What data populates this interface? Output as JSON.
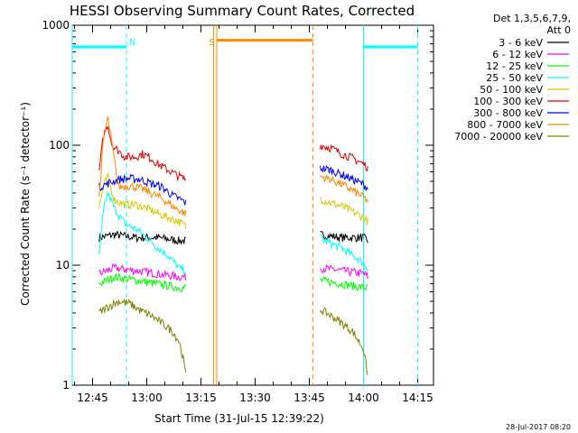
{
  "chart_data": {
    "type": "line",
    "title": "HESSI Observing Summary Count Rates, Corrected",
    "xlabel": "Start Time (31-Jul-15 12:39:22)",
    "ylabel": "Corrected Count Rate (s⁻¹ detector⁻¹)",
    "y_scale": "log",
    "ylim": [
      1,
      1000
    ],
    "y_ticks": [
      {
        "v": 1,
        "label": "1"
      },
      {
        "v": 10,
        "label": "10"
      },
      {
        "v": 100,
        "label": "100"
      },
      {
        "v": 1000,
        "label": "1000"
      }
    ],
    "xlim": [
      "12:39:22",
      "14:19:22"
    ],
    "x_ticks": [
      "12:45",
      "13:00",
      "13:15",
      "13:30",
      "13:45",
      "14:00",
      "14:15"
    ],
    "legend_header": [
      "Det 1,3,5,6,7,9,",
      "Att 0"
    ],
    "legend_position": "right",
    "series": [
      {
        "name": "3 - 6 keV",
        "color": "#000000",
        "seg1": [
          [
            12.78,
            17
          ],
          [
            12.85,
            18
          ],
          [
            12.95,
            17
          ],
          [
            13.05,
            17
          ],
          [
            13.15,
            16
          ],
          [
            13.18,
            16
          ]
        ],
        "seg2": [
          [
            13.8,
            18
          ],
          [
            13.9,
            17
          ],
          [
            14.0,
            17
          ],
          [
            14.02,
            16
          ]
        ]
      },
      {
        "name": "6 - 12 keV",
        "color": "#ff00ff",
        "seg1": [
          [
            12.78,
            8.5
          ],
          [
            12.85,
            9.5
          ],
          [
            12.95,
            9
          ],
          [
            13.05,
            8.5
          ],
          [
            13.15,
            8
          ],
          [
            13.18,
            8
          ]
        ],
        "seg2": [
          [
            13.8,
            9.5
          ],
          [
            13.9,
            9
          ],
          [
            14.0,
            8.5
          ],
          [
            14.02,
            8
          ]
        ]
      },
      {
        "name": "12 - 25 keV",
        "color": "#00ff00",
        "seg1": [
          [
            12.78,
            7
          ],
          [
            12.85,
            8
          ],
          [
            12.95,
            7.5
          ],
          [
            13.05,
            7
          ],
          [
            13.15,
            6.5
          ],
          [
            13.18,
            6.5
          ]
        ],
        "seg2": [
          [
            13.8,
            7.5
          ],
          [
            13.9,
            7
          ],
          [
            14.0,
            6.5
          ],
          [
            14.02,
            6.5
          ]
        ]
      },
      {
        "name": "25 - 50 keV",
        "color": "#00ffff",
        "seg1": [
          [
            12.78,
            12
          ],
          [
            12.8,
            28
          ],
          [
            12.82,
            40
          ],
          [
            12.85,
            30
          ],
          [
            12.9,
            22
          ],
          [
            12.95,
            20
          ],
          [
            13.0,
            17
          ],
          [
            13.05,
            14
          ],
          [
            13.1,
            12
          ],
          [
            13.15,
            9.5
          ],
          [
            13.18,
            9
          ]
        ],
        "seg2": [
          [
            13.8,
            17
          ],
          [
            13.85,
            15
          ],
          [
            13.9,
            14
          ],
          [
            13.95,
            12
          ],
          [
            14.0,
            10.5
          ],
          [
            14.02,
            9.5
          ]
        ]
      },
      {
        "name": "50 - 100 keV",
        "color": "#d4c800",
        "seg1": [
          [
            12.78,
            30
          ],
          [
            12.8,
            45
          ],
          [
            12.82,
            55
          ],
          [
            12.85,
            35
          ],
          [
            12.9,
            32
          ],
          [
            12.95,
            32
          ],
          [
            13.0,
            30
          ],
          [
            13.05,
            27
          ],
          [
            13.1,
            25
          ],
          [
            13.15,
            23
          ],
          [
            13.18,
            21
          ]
        ],
        "seg2": [
          [
            13.8,
            36
          ],
          [
            13.85,
            33
          ],
          [
            13.9,
            31
          ],
          [
            13.95,
            28
          ],
          [
            14.0,
            25
          ],
          [
            14.02,
            23
          ]
        ]
      },
      {
        "name": "100 - 300 keV",
        "color": "#dd0000",
        "seg1": [
          [
            12.78,
            60
          ],
          [
            12.8,
            120
          ],
          [
            12.82,
            150
          ],
          [
            12.84,
            100
          ],
          [
            12.87,
            90
          ],
          [
            12.9,
            80
          ],
          [
            12.95,
            80
          ],
          [
            12.98,
            85
          ],
          [
            13.02,
            78
          ],
          [
            13.05,
            70
          ],
          [
            13.1,
            62
          ],
          [
            13.15,
            55
          ],
          [
            13.18,
            52
          ]
        ],
        "seg2": [
          [
            13.8,
            100
          ],
          [
            13.85,
            95
          ],
          [
            13.9,
            85
          ],
          [
            13.95,
            78
          ],
          [
            14.0,
            70
          ],
          [
            14.02,
            65
          ]
        ]
      },
      {
        "name": "300 - 800 keV",
        "color": "#0000ee",
        "seg1": [
          [
            12.78,
            45
          ],
          [
            12.82,
            48
          ],
          [
            12.87,
            52
          ],
          [
            12.92,
            53
          ],
          [
            12.97,
            52
          ],
          [
            13.02,
            48
          ],
          [
            13.07,
            45
          ],
          [
            13.12,
            38
          ],
          [
            13.16,
            35
          ],
          [
            13.18,
            33
          ]
        ],
        "seg2": [
          [
            13.8,
            65
          ],
          [
            13.85,
            62
          ],
          [
            13.9,
            57
          ],
          [
            13.95,
            52
          ],
          [
            14.0,
            47
          ],
          [
            14.02,
            44
          ]
        ]
      },
      {
        "name": "800 - 7000 keV",
        "color": "#ff8800",
        "seg1": [
          [
            12.78,
            36
          ],
          [
            12.8,
            110
          ],
          [
            12.82,
            170
          ],
          [
            12.84,
            100
          ],
          [
            12.87,
            45
          ],
          [
            12.92,
            46
          ],
          [
            12.97,
            44
          ],
          [
            13.02,
            40
          ],
          [
            13.07,
            36
          ],
          [
            13.12,
            31
          ],
          [
            13.16,
            28
          ],
          [
            13.18,
            27
          ]
        ],
        "seg2": [
          [
            13.8,
            55
          ],
          [
            13.85,
            52
          ],
          [
            13.9,
            47
          ],
          [
            13.95,
            42
          ],
          [
            14.0,
            37
          ],
          [
            14.02,
            34
          ]
        ]
      },
      {
        "name": "7000 - 20000 keV",
        "color": "#808000",
        "seg1": [
          [
            12.78,
            4
          ],
          [
            12.82,
            4.5
          ],
          [
            12.87,
            5
          ],
          [
            12.92,
            4.8
          ],
          [
            12.97,
            4.2
          ],
          [
            13.02,
            3.8
          ],
          [
            13.07,
            3.3
          ],
          [
            13.12,
            2.8
          ],
          [
            13.15,
            2.3
          ],
          [
            13.17,
            1.6
          ],
          [
            13.18,
            1.2
          ]
        ],
        "seg2": [
          [
            13.8,
            4.3
          ],
          [
            13.85,
            3.8
          ],
          [
            13.9,
            3.3
          ],
          [
            13.95,
            2.8
          ],
          [
            14.0,
            2.0
          ],
          [
            14.02,
            1.2
          ]
        ]
      }
    ],
    "flags": [
      {
        "label": "N",
        "color": "#00ffff",
        "level": 660,
        "from": "12:39:22",
        "to": "12:54:22",
        "line_at": "12:54:22",
        "label_at": "12:56:00"
      },
      {
        "label": "N",
        "color": "#00ffff",
        "level": 660,
        "from": "14:00:00",
        "to": "14:15:00",
        "line_at": "14:15:00"
      },
      {
        "label": "S",
        "color": "#ff8800",
        "level": 750,
        "from": "13:19:22",
        "to": "13:46:00",
        "line_at": "13:46:00",
        "label_at": "13:18:00"
      }
    ],
    "solid_lines": [
      {
        "at": "12:39:22",
        "color": "#00ffff"
      },
      {
        "at": "13:18:30",
        "color": "#ff8800"
      },
      {
        "at": "13:19:22",
        "color": "#ff8800"
      },
      {
        "at": "14:00:00",
        "color": "#00ffff"
      }
    ],
    "footer": "28-Jul-2017 08:20"
  }
}
